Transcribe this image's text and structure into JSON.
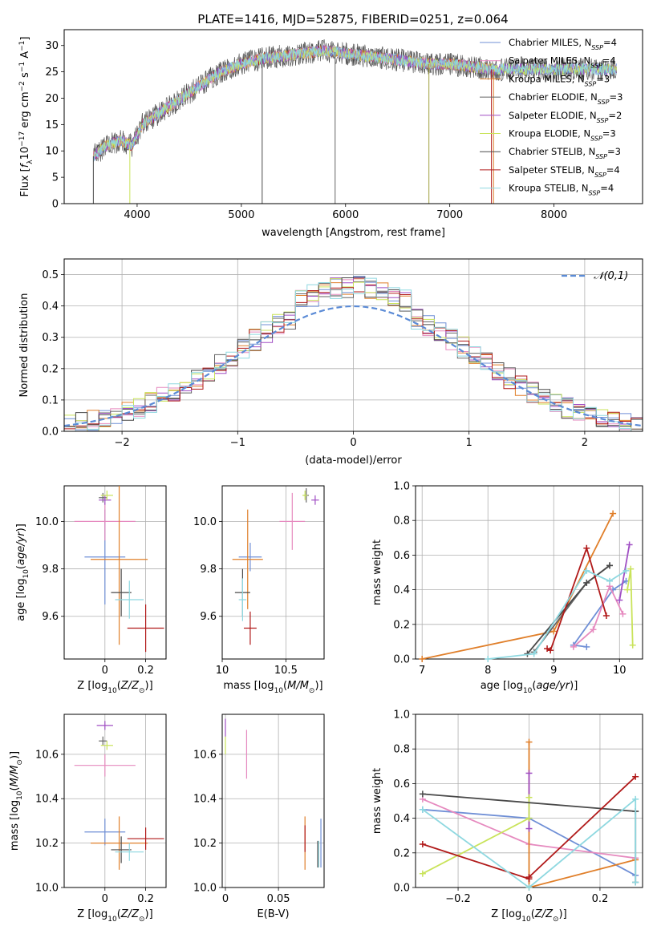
{
  "title": "PLATE=1416, MJD=52875, FIBERID=0251, z=0.064",
  "colors": {
    "Chabrier MILES": "#6f8fd6",
    "Salpeter MILES": "#e68abf",
    "Kroupa MILES": "#e07f2a",
    "Chabrier ELODIE": "#666666",
    "Salpeter ELODIE": "#a04fc4",
    "Kroupa ELODIE": "#c9e35a",
    "Chabrier STELIB": "#4a4a4a",
    "Salpeter STELIB": "#b11a1a",
    "Kroupa STELIB": "#8ed8e0"
  },
  "chart_data": [
    {
      "id": "spectrum",
      "type": "line",
      "title": "PLATE=1416, MJD=52875, FIBERID=0251, z=0.064",
      "xlabel": "wavelength [Angstrom, rest frame]",
      "ylabel": "Flux [f_λ 10^-17 erg cm^-2 s^-1 A^-1]",
      "xlim": [
        3300,
        8850
      ],
      "ylim": [
        0,
        33
      ],
      "xticks": [
        4000,
        5000,
        6000,
        7000,
        8000
      ],
      "yticks": [
        0,
        5,
        10,
        15,
        20,
        25,
        30
      ],
      "legend": [
        {
          "name": "Chabrier MILES",
          "nssp": "4"
        },
        {
          "name": "Salpeter MILES",
          "nssp": "4"
        },
        {
          "name": "Kroupa MILES",
          "nssp": "3"
        },
        {
          "name": "Chabrier ELODIE",
          "nssp": "3"
        },
        {
          "name": "Salpeter ELODIE",
          "nssp": "2"
        },
        {
          "name": "Kroupa ELODIE",
          "nssp": "3"
        },
        {
          "name": "Chabrier STELIB",
          "nssp": "3"
        },
        {
          "name": "Salpeter STELIB",
          "nssp": "4"
        },
        {
          "name": "Kroupa STELIB",
          "nssp": "4"
        }
      ],
      "legend_placement": "upper-right",
      "continuum": {
        "x": [
          3580,
          3700,
          3850,
          3950,
          4050,
          4200,
          4350,
          4500,
          4650,
          4800,
          5000,
          5200,
          5400,
          5600,
          5800,
          6000,
          6200,
          6400,
          6600,
          6800,
          7000,
          7200,
          7400,
          7600,
          7800,
          8000,
          8200,
          8400,
          8600
        ],
        "y": [
          9,
          11,
          12,
          11,
          15,
          17,
          19,
          21,
          23,
          25,
          26.5,
          27.5,
          28,
          28.5,
          29,
          28.5,
          28,
          27.5,
          27,
          26.5,
          26.5,
          26,
          25.5,
          25.5,
          25.5,
          25.5,
          25.5,
          25.5,
          25.5
        ]
      },
      "noise_amplitude": 2.0
    },
    {
      "id": "residuals",
      "type": "histogram",
      "xlabel": "(data-model)/error",
      "ylabel": "Normed distribution",
      "xlim": [
        -2.5,
        2.5
      ],
      "ylim": [
        0,
        0.55
      ],
      "xticks": [
        -2,
        -1,
        0,
        1,
        2
      ],
      "yticks": [
        0.0,
        0.1,
        0.2,
        0.3,
        0.4,
        0.5
      ],
      "reference_label": "𝒩(0,1)",
      "reference_color": "#5b8bd6",
      "legend_placement": "upper-right",
      "bin_width": 0.1
    },
    {
      "id": "age-vs-Z",
      "type": "scatter",
      "xlabel": "Z [log10(Z/Z⊙)]",
      "ylabel": "age [log10(age/yr)]",
      "xlim": [
        -0.2,
        0.3
      ],
      "ylim": [
        9.42,
        10.15
      ],
      "xticks": [
        0.0,
        0.2
      ],
      "yticks": [
        9.6,
        9.8,
        10.0
      ],
      "points": [
        {
          "series": "Chabrier MILES",
          "x": 0.0,
          "y": 9.85,
          "xerr": 0.1,
          "yerr": 0.2
        },
        {
          "series": "Salpeter MILES",
          "x": 0.0,
          "y": 10.0,
          "xerr": 0.15,
          "yerr": 0.08
        },
        {
          "series": "Kroupa MILES",
          "x": 0.07,
          "y": 9.84,
          "xerr": 0.14,
          "yerr": 0.36
        },
        {
          "series": "Chabrier ELODIE",
          "x": -0.01,
          "y": 10.1,
          "xerr": 0.02,
          "yerr": 0.02
        },
        {
          "series": "Salpeter ELODIE",
          "x": 0.0,
          "y": 10.09,
          "xerr": 0.03,
          "yerr": 0.02
        },
        {
          "series": "Kroupa ELODIE",
          "x": 0.01,
          "y": 10.11,
          "xerr": 0.03,
          "yerr": 0.02
        },
        {
          "series": "Chabrier STELIB",
          "x": 0.08,
          "y": 9.7,
          "xerr": 0.05,
          "yerr": 0.1
        },
        {
          "series": "Salpeter STELIB",
          "x": 0.2,
          "y": 9.55,
          "xerr": 0.09,
          "yerr": 0.1
        },
        {
          "series": "Kroupa STELIB",
          "x": 0.12,
          "y": 9.67,
          "xerr": 0.07,
          "yerr": 0.08
        }
      ]
    },
    {
      "id": "age-vs-mass",
      "type": "scatter",
      "xlabel": "mass [log10(M/M⊙)]",
      "ylabel": "",
      "xlim": [
        10.0,
        10.8
      ],
      "ylim": [
        9.42,
        10.15
      ],
      "xticks": [
        10.0,
        10.5
      ],
      "yticks": [
        9.6,
        9.8,
        10.0
      ],
      "points": [
        {
          "series": "Chabrier MILES",
          "x": 10.22,
          "y": 9.85,
          "xerr": 0.09,
          "yerr": 0.06
        },
        {
          "series": "Salpeter MILES",
          "x": 10.55,
          "y": 10.0,
          "xerr": 0.1,
          "yerr": 0.12
        },
        {
          "series": "Kroupa MILES",
          "x": 10.2,
          "y": 9.84,
          "xerr": 0.12,
          "yerr": 0.21
        },
        {
          "series": "Chabrier ELODIE",
          "x": 10.66,
          "y": 10.11,
          "xerr": 0.02,
          "yerr": 0.03
        },
        {
          "series": "Salpeter ELODIE",
          "x": 10.73,
          "y": 10.09,
          "xerr": 0.03,
          "yerr": 0.02
        },
        {
          "series": "Kroupa ELODIE",
          "x": 10.65,
          "y": 10.11,
          "xerr": 0.02,
          "yerr": 0.02
        },
        {
          "series": "Chabrier STELIB",
          "x": 10.16,
          "y": 9.7,
          "xerr": 0.06,
          "yerr": 0.1
        },
        {
          "series": "Salpeter STELIB",
          "x": 10.22,
          "y": 9.55,
          "xerr": 0.05,
          "yerr": 0.07
        },
        {
          "series": "Kroupa STELIB",
          "x": 10.16,
          "y": 9.67,
          "xerr": 0.03,
          "yerr": 0.09
        }
      ]
    },
    {
      "id": "weight-vs-age",
      "type": "line",
      "xlabel": "age [log10(age/yr)]",
      "ylabel": "mass weight",
      "xlim": [
        6.9,
        10.35
      ],
      "ylim": [
        0,
        1.0
      ],
      "xticks": [
        7,
        8,
        9,
        10
      ],
      "yticks": [
        0.0,
        0.2,
        0.4,
        0.6,
        0.8,
        1.0
      ],
      "series": [
        {
          "name": "Chabrier MILES",
          "x": [
            9.5,
            9.3,
            9.9,
            10.1
          ],
          "y": [
            0.07,
            0.08,
            0.4,
            0.45
          ]
        },
        {
          "name": "Salpeter MILES",
          "x": [
            9.3,
            9.6,
            9.85,
            10.05
          ],
          "y": [
            0.07,
            0.17,
            0.42,
            0.26
          ]
        },
        {
          "name": "Kroupa MILES",
          "x": [
            7.0,
            9.0,
            9.9
          ],
          "y": [
            0.0,
            0.16,
            0.84
          ]
        },
        {
          "name": "Chabrier ELODIE",
          "x": [
            8.7,
            9.5,
            9.85
          ],
          "y": [
            0.04,
            0.44,
            0.54
          ]
        },
        {
          "name": "Salpeter ELODIE",
          "x": [
            10.0,
            10.15
          ],
          "y": [
            0.34,
            0.66
          ]
        },
        {
          "name": "Kroupa ELODIE",
          "x": [
            10.12,
            10.17,
            10.2
          ],
          "y": [
            0.4,
            0.52,
            0.08
          ]
        },
        {
          "name": "Chabrier STELIB",
          "x": [
            8.6,
            9.5,
            9.85
          ],
          "y": [
            0.03,
            0.44,
            0.54
          ]
        },
        {
          "name": "Salpeter STELIB",
          "x": [
            8.9,
            8.95,
            9.5,
            9.8
          ],
          "y": [
            0.06,
            0.05,
            0.64,
            0.25
          ]
        },
        {
          "name": "Kroupa STELIB",
          "x": [
            8.0,
            8.7,
            9.5,
            9.85,
            10.1
          ],
          "y": [
            0.0,
            0.03,
            0.51,
            0.45,
            0.51
          ]
        }
      ]
    },
    {
      "id": "mass-vs-Z",
      "type": "scatter",
      "xlabel": "Z [log10(Z/Z⊙)]",
      "ylabel": "mass [log10(M/M⊙)]",
      "xlim": [
        -0.2,
        0.3
      ],
      "ylim": [
        10.0,
        10.78
      ],
      "xticks": [
        0.0,
        0.2
      ],
      "yticks": [
        10.0,
        10.2,
        10.4,
        10.6
      ],
      "points": [
        {
          "series": "Chabrier MILES",
          "x": 0.0,
          "y": 10.25,
          "xerr": 0.1,
          "yerr": 0.06
        },
        {
          "series": "Salpeter MILES",
          "x": 0.0,
          "y": 10.55,
          "xerr": 0.15,
          "yerr": 0.05
        },
        {
          "series": "Kroupa MILES",
          "x": 0.07,
          "y": 10.2,
          "xerr": 0.14,
          "yerr": 0.12
        },
        {
          "series": "Chabrier ELODIE",
          "x": -0.01,
          "y": 10.66,
          "xerr": 0.02,
          "yerr": 0.02
        },
        {
          "series": "Salpeter ELODIE",
          "x": 0.0,
          "y": 10.73,
          "xerr": 0.04,
          "yerr": 0.02
        },
        {
          "series": "Kroupa ELODIE",
          "x": 0.01,
          "y": 10.64,
          "xerr": 0.03,
          "yerr": 0.02
        },
        {
          "series": "Chabrier STELIB",
          "x": 0.08,
          "y": 10.17,
          "xerr": 0.05,
          "yerr": 0.06
        },
        {
          "series": "Salpeter STELIB",
          "x": 0.2,
          "y": 10.22,
          "xerr": 0.09,
          "yerr": 0.05
        },
        {
          "series": "Kroupa STELIB",
          "x": 0.12,
          "y": 10.16,
          "xerr": 0.07,
          "yerr": 0.04
        }
      ]
    },
    {
      "id": "mass-vs-ebv",
      "type": "scatter",
      "xlabel": "E(B-V)",
      "ylabel": "",
      "xlim": [
        -0.003,
        0.093
      ],
      "ylim": [
        10.0,
        10.78
      ],
      "xticks": [
        0.0,
        0.05
      ],
      "yticks": [
        10.0,
        10.2,
        10.4,
        10.6
      ],
      "points": [
        {
          "series": "Salpeter MILES",
          "x": 0.02,
          "y": 10.6,
          "xerr": 0,
          "yerr": 0.11
        },
        {
          "series": "Kroupa ELODIE",
          "x": 0.0,
          "y": 10.64,
          "xerr": 0,
          "yerr": 0.04
        },
        {
          "series": "Salpeter ELODIE",
          "x": 0.0,
          "y": 10.72,
          "xerr": 0,
          "yerr": 0.04
        },
        {
          "series": "Kroupa MILES",
          "x": 0.075,
          "y": 10.2,
          "xerr": 0,
          "yerr": 0.12
        },
        {
          "series": "Salpeter STELIB",
          "x": 0.075,
          "y": 10.22,
          "xerr": 0,
          "yerr": 0.06
        },
        {
          "series": "Chabrier MILES",
          "x": 0.09,
          "y": 10.2,
          "xerr": 0,
          "yerr": 0.11
        },
        {
          "series": "Kroupa STELIB",
          "x": 0.088,
          "y": 10.15,
          "xerr": 0,
          "yerr": 0.06
        },
        {
          "series": "Chabrier STELIB",
          "x": 0.087,
          "y": 10.15,
          "xerr": 0,
          "yerr": 0.06
        }
      ]
    },
    {
      "id": "weight-vs-Z",
      "type": "line",
      "xlabel": "Z [log10(Z/Z⊙)]",
      "ylabel": "mass weight",
      "xlim": [
        -0.32,
        0.32
      ],
      "ylim": [
        0,
        1.0
      ],
      "xticks": [
        -0.2,
        0.0,
        0.2
      ],
      "yticks": [
        0.0,
        0.2,
        0.4,
        0.6,
        0.8,
        1.0
      ],
      "series": [
        {
          "name": "Chabrier MILES",
          "x": [
            -0.3,
            0.0,
            0.3
          ],
          "y": [
            0.45,
            0.4,
            0.07
          ]
        },
        {
          "name": "Salpeter MILES",
          "x": [
            -0.3,
            0.0,
            0.3
          ],
          "y": [
            0.51,
            0.25,
            0.17
          ]
        },
        {
          "name": "Kroupa MILES",
          "x": [
            0.0,
            0.0,
            0.3
          ],
          "y": [
            0.84,
            0.0,
            0.16
          ]
        },
        {
          "name": "Chabrier ELODIE",
          "x": [
            0.3,
            0.3
          ],
          "y": [
            0.44,
            0.03
          ]
        },
        {
          "name": "Salpeter ELODIE",
          "x": [
            0.0,
            0.0
          ],
          "y": [
            0.66,
            0.34
          ]
        },
        {
          "name": "Kroupa ELODIE",
          "x": [
            -0.3,
            0.0,
            0.0
          ],
          "y": [
            0.08,
            0.4,
            0.52
          ]
        },
        {
          "name": "Chabrier STELIB",
          "x": [
            -0.3,
            0.3
          ],
          "y": [
            0.54,
            0.44
          ]
        },
        {
          "name": "Salpeter STELIB",
          "x": [
            -0.3,
            0.0,
            0.0,
            0.3
          ],
          "y": [
            0.25,
            0.05,
            0.06,
            0.64
          ]
        },
        {
          "name": "Kroupa STELIB",
          "x": [
            -0.3,
            0.0,
            0.3,
            0.3
          ],
          "y": [
            0.45,
            0.0,
            0.51,
            0.03
          ]
        }
      ]
    }
  ]
}
